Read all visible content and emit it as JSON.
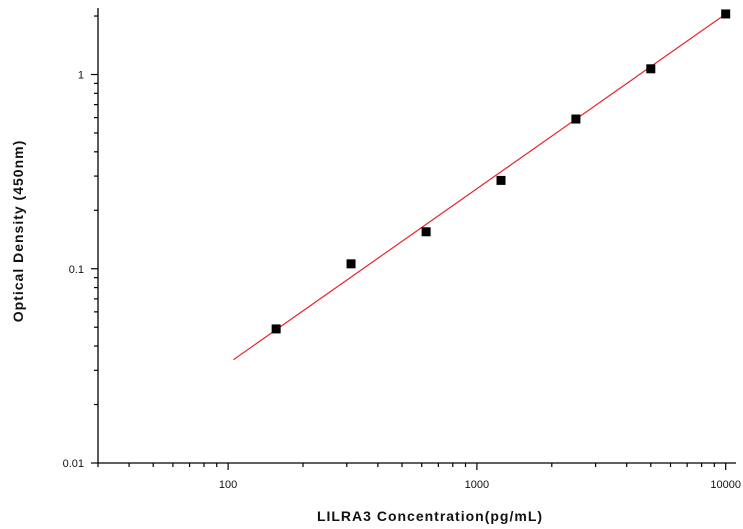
{
  "chart_data": {
    "type": "scatter",
    "title": "",
    "xlabel": "LILRA3  Concentration(pg/mL)",
    "ylabel": "Optical Density (450nm)",
    "x_scale": "log",
    "y_scale": "log",
    "xlim": [
      30,
      11000
    ],
    "ylim": [
      0.01,
      2.2
    ],
    "x_ticks": [
      {
        "value": 100,
        "label": "100"
      },
      {
        "value": 1000,
        "label": "1000"
      },
      {
        "value": 10000,
        "label": "10000"
      }
    ],
    "y_ticks": [
      {
        "value": 0.01,
        "label": "0.01"
      },
      {
        "value": 0.1,
        "label": "0.1"
      },
      {
        "value": 1,
        "label": "1"
      }
    ],
    "grid": false,
    "legend": "none",
    "series": [
      {
        "color": "#000000",
        "marker": "square",
        "points": [
          {
            "x": 156,
            "y": 0.049
          },
          {
            "x": 312,
            "y": 0.106
          },
          {
            "x": 625,
            "y": 0.155
          },
          {
            "x": 1250,
            "y": 0.285
          },
          {
            "x": 2500,
            "y": 0.59
          },
          {
            "x": 5000,
            "y": 1.07
          },
          {
            "x": 10000,
            "y": 2.05
          }
        ]
      }
    ],
    "fit_line": {
      "color": "#e8262a",
      "x": [
        105,
        10000
      ],
      "y": [
        0.034,
        2.05
      ]
    }
  }
}
